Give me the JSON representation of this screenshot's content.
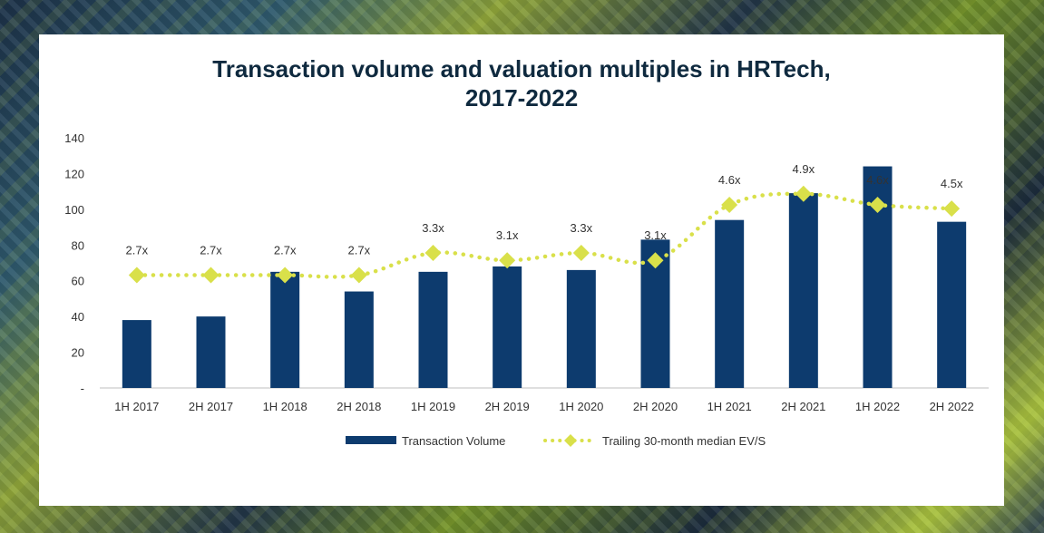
{
  "chart_data": {
    "type": "bar",
    "title_line1": "Transaction volume and valuation multiples in HRTech,",
    "title_line2": "2017-2022",
    "categories": [
      "1H 2017",
      "2H 2017",
      "1H 2018",
      "2H 2018",
      "1H 2019",
      "2H 2019",
      "1H 2020",
      "2H 2020",
      "1H 2021",
      "2H 2021",
      "1H 2022",
      "2H 2022"
    ],
    "series": [
      {
        "name": "Transaction Volume",
        "type": "bar",
        "color": "#0d3b6e",
        "values": [
          38,
          40,
          65,
          54,
          65,
          68,
          66,
          83,
          94,
          109,
          124,
          93
        ]
      },
      {
        "name": "Trailing 30-month median EV/S",
        "type": "line",
        "style": "dotted-diamond",
        "color": "#d9e04a",
        "labels": [
          "2.7x",
          "2.7x",
          "2.7x",
          "2.7x",
          "3.3x",
          "3.1x",
          "3.3x",
          "3.1x",
          "4.6x",
          "4.9x",
          "4.6x",
          "4.5x"
        ],
        "values": [
          2.7,
          2.7,
          2.7,
          2.7,
          3.3,
          3.1,
          3.3,
          3.1,
          4.6,
          4.9,
          4.6,
          4.5
        ]
      }
    ],
    "y_ticks": [
      "-",
      "20",
      "40",
      "60",
      "80",
      "100",
      "120",
      "140"
    ],
    "ylim": [
      0,
      140
    ],
    "grid": false,
    "legend_position": "bottom"
  }
}
